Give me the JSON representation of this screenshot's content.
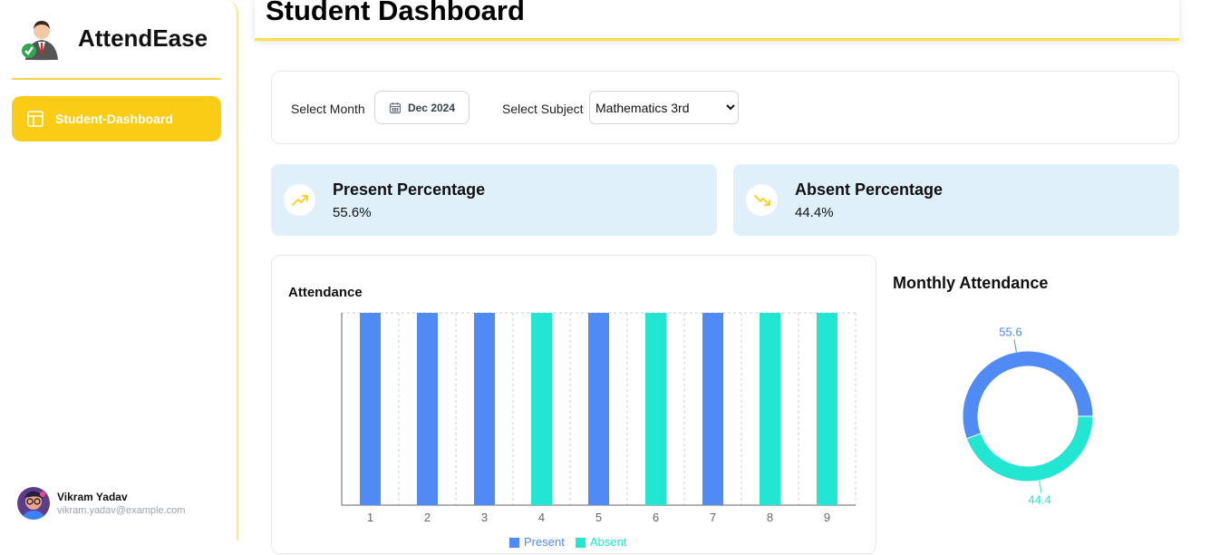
{
  "app": {
    "name": "AttendEase",
    "page_title": "Student Dashboard"
  },
  "sidebar": {
    "items": [
      {
        "label": "Student-Dashboard",
        "icon": "layout-icon",
        "active": true
      }
    ]
  },
  "user": {
    "name": "Vikram Yadav",
    "email": "vikram.yadav@example.com"
  },
  "filters": {
    "month_label": "Select Month",
    "month_value": "Dec 2024",
    "subject_label": "Select Subject",
    "subject_value": "Mathematics 3rd"
  },
  "stats": {
    "present": {
      "title": "Present Percentage",
      "value": "55.6%",
      "icon": "trending-up-icon"
    },
    "absent": {
      "title": "Absent Percentage",
      "value": "44.4%",
      "icon": "trending-down-icon"
    }
  },
  "colors": {
    "accent": "#facc15",
    "present": "#4f8af5",
    "absent": "#22e5d2",
    "stat_bg": "#e0f0fb"
  },
  "chart_data": [
    {
      "type": "bar",
      "title": "Attendance",
      "categories": [
        "1",
        "2",
        "3",
        "4",
        "5",
        "6",
        "7",
        "8",
        "9"
      ],
      "series": [
        {
          "name": "Present",
          "values": [
            1,
            1,
            1,
            0,
            1,
            0,
            1,
            0,
            0
          ]
        },
        {
          "name": "Absent",
          "values": [
            0,
            0,
            0,
            1,
            0,
            1,
            0,
            1,
            1
          ]
        }
      ],
      "ylim": [
        0,
        1
      ],
      "grid": true,
      "legend": "bottom"
    },
    {
      "type": "pie",
      "title": "Monthly Attendance",
      "donut": true,
      "slices": [
        {
          "name": "Present",
          "value": 55.6,
          "label": "55.6"
        },
        {
          "name": "Absent",
          "value": 44.4,
          "label": "44.4"
        }
      ]
    }
  ]
}
